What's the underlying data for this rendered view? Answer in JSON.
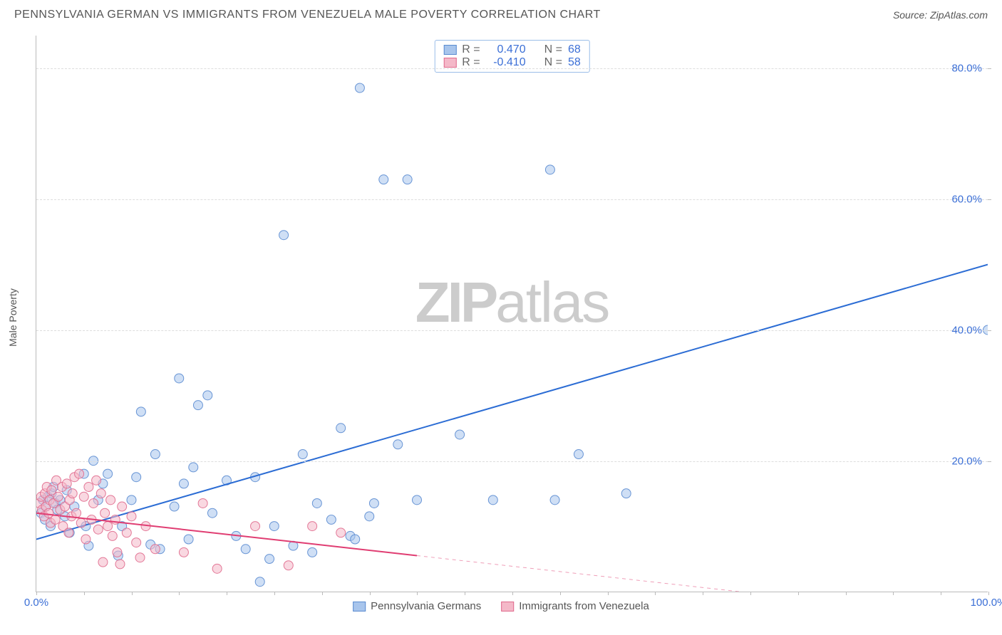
{
  "title": "PENNSYLVANIA GERMAN VS IMMIGRANTS FROM VENEZUELA MALE POVERTY CORRELATION CHART",
  "source_label": "Source: ",
  "source_value": "ZipAtlas.com",
  "ylabel": "Male Poverty",
  "watermark_bold": "ZIP",
  "watermark_light": "atlas",
  "chart": {
    "type": "scatter",
    "xlim": [
      0,
      100
    ],
    "ylim": [
      0,
      85
    ],
    "yticks": [
      20,
      40,
      60,
      80
    ],
    "ytick_labels": [
      "20.0%",
      "40.0%",
      "60.0%",
      "80.0%"
    ],
    "xticks_minor": [
      0,
      5,
      10,
      15,
      20,
      25,
      30,
      35,
      40,
      45,
      50,
      55,
      60,
      65,
      70,
      75,
      80,
      85,
      90,
      95,
      100
    ],
    "xtick_labels": {
      "0": "0.0%",
      "100": "100.0%"
    },
    "grid_color": "#dddddd",
    "axis_color": "#bbbbbb",
    "background": "#ffffff",
    "marker_radius": 6.5,
    "marker_opacity": 0.55,
    "marker_stroke_opacity": 0.9,
    "series": [
      {
        "name": "Pennsylvania Germans",
        "color_fill": "#a8c5ec",
        "color_stroke": "#5a8bd0",
        "r": "0.470",
        "n": "68",
        "trend": {
          "x1": 0,
          "y1": 8,
          "x2": 100,
          "y2": 50,
          "dash_after_x": 100,
          "stroke": "#2b6cd4",
          "width": 2
        },
        "points": [
          [
            0.5,
            12
          ],
          [
            0.7,
            14
          ],
          [
            0.9,
            11
          ],
          [
            1.0,
            13
          ],
          [
            1.2,
            14.5
          ],
          [
            1.5,
            10
          ],
          [
            1.6,
            15
          ],
          [
            1.8,
            16
          ],
          [
            2.0,
            13.5
          ],
          [
            2.2,
            12.5
          ],
          [
            2.5,
            14
          ],
          [
            3.0,
            11.5
          ],
          [
            3.2,
            15.5
          ],
          [
            3.5,
            9
          ],
          [
            4.0,
            13
          ],
          [
            5.0,
            18
          ],
          [
            5.2,
            10
          ],
          [
            5.5,
            7
          ],
          [
            6.0,
            20
          ],
          [
            6.5,
            14
          ],
          [
            7.0,
            16.5
          ],
          [
            7.5,
            18
          ],
          [
            8.6,
            5.5
          ],
          [
            9.0,
            10
          ],
          [
            10.0,
            14
          ],
          [
            10.5,
            17.5
          ],
          [
            11.0,
            27.5
          ],
          [
            12.0,
            7.2
          ],
          [
            12.5,
            21
          ],
          [
            13.0,
            6.5
          ],
          [
            14.5,
            13
          ],
          [
            15.0,
            32.6
          ],
          [
            15.5,
            16.5
          ],
          [
            16.0,
            8
          ],
          [
            16.5,
            19
          ],
          [
            17.0,
            28.5
          ],
          [
            18.0,
            30
          ],
          [
            18.5,
            12
          ],
          [
            20.0,
            17
          ],
          [
            21.0,
            8.5
          ],
          [
            22.0,
            6.5
          ],
          [
            23.0,
            17.5
          ],
          [
            23.5,
            1.5
          ],
          [
            24.5,
            5
          ],
          [
            25.0,
            10
          ],
          [
            26.0,
            54.5
          ],
          [
            27.0,
            7
          ],
          [
            28.0,
            21
          ],
          [
            29.0,
            6
          ],
          [
            29.5,
            13.5
          ],
          [
            31.0,
            11
          ],
          [
            32.0,
            25
          ],
          [
            33.0,
            8.5
          ],
          [
            33.5,
            8
          ],
          [
            34.0,
            77
          ],
          [
            35.0,
            11.5
          ],
          [
            35.5,
            13.5
          ],
          [
            36.5,
            63
          ],
          [
            38.0,
            22.5
          ],
          [
            39.0,
            63
          ],
          [
            40.0,
            14
          ],
          [
            44.5,
            24
          ],
          [
            48.0,
            14
          ],
          [
            54.0,
            64.5
          ],
          [
            54.5,
            14
          ],
          [
            57.0,
            21
          ],
          [
            62.0,
            15
          ],
          [
            100,
            40
          ]
        ]
      },
      {
        "name": "Immigrants from Venezuela",
        "color_fill": "#f4b8c8",
        "color_stroke": "#e06a8d",
        "r": "-0.410",
        "n": "58",
        "trend": {
          "x1": 0,
          "y1": 12,
          "x2": 40,
          "y2": 5.5,
          "dash_after_x": 40,
          "dash_x2": 80,
          "dash_y2": -1,
          "stroke": "#e03d72",
          "width": 2
        },
        "points": [
          [
            0.3,
            13.5
          ],
          [
            0.5,
            14.5
          ],
          [
            0.6,
            12.5
          ],
          [
            0.8,
            11.5
          ],
          [
            0.9,
            15
          ],
          [
            1.0,
            13
          ],
          [
            1.1,
            16
          ],
          [
            1.3,
            12
          ],
          [
            1.4,
            14
          ],
          [
            1.5,
            10.5
          ],
          [
            1.6,
            15.5
          ],
          [
            1.8,
            13.5
          ],
          [
            2.0,
            11
          ],
          [
            2.1,
            17
          ],
          [
            2.3,
            14.5
          ],
          [
            2.5,
            12.5
          ],
          [
            2.7,
            16
          ],
          [
            2.8,
            10
          ],
          [
            3.0,
            13
          ],
          [
            3.2,
            16.5
          ],
          [
            3.4,
            9
          ],
          [
            3.5,
            14
          ],
          [
            3.7,
            11.5
          ],
          [
            3.8,
            15
          ],
          [
            4.0,
            17.5
          ],
          [
            4.2,
            12
          ],
          [
            4.5,
            18
          ],
          [
            4.7,
            10.5
          ],
          [
            5.0,
            14.5
          ],
          [
            5.2,
            8
          ],
          [
            5.5,
            16
          ],
          [
            5.8,
            11
          ],
          [
            6.0,
            13.5
          ],
          [
            6.3,
            17
          ],
          [
            6.5,
            9.5
          ],
          [
            6.8,
            15
          ],
          [
            7.0,
            4.5
          ],
          [
            7.2,
            12
          ],
          [
            7.5,
            10
          ],
          [
            7.8,
            14
          ],
          [
            8.0,
            8.5
          ],
          [
            8.3,
            11
          ],
          [
            8.5,
            6
          ],
          [
            8.8,
            4.2
          ],
          [
            9.0,
            13
          ],
          [
            9.5,
            9
          ],
          [
            10.0,
            11.5
          ],
          [
            10.5,
            7.5
          ],
          [
            10.9,
            5.2
          ],
          [
            11.5,
            10
          ],
          [
            12.5,
            6.5
          ],
          [
            15.5,
            6
          ],
          [
            17.5,
            13.5
          ],
          [
            19.0,
            3.5
          ],
          [
            23.0,
            10
          ],
          [
            26.5,
            4
          ],
          [
            29.0,
            10
          ],
          [
            32.0,
            9
          ]
        ]
      }
    ]
  },
  "stat_box": {
    "r_label": "R",
    "n_label": "N",
    "eq": "="
  },
  "legend": {
    "items": [
      "Pennsylvania Germans",
      "Immigrants from Venezuela"
    ]
  }
}
